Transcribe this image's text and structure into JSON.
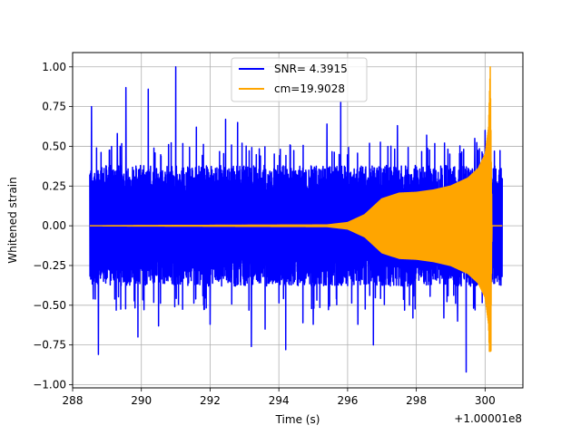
{
  "chart_data": {
    "type": "line",
    "title": "",
    "xlabel": "Time (s)",
    "ylabel": "Whitened strain",
    "x_offset_label": "+1.00001e8",
    "xlim": [
      288.0,
      301.1
    ],
    "ylim": [
      -1.02,
      1.09
    ],
    "x_ticks": [
      288,
      290,
      292,
      294,
      296,
      298,
      300
    ],
    "x_tick_labels": [
      "288",
      "290",
      "292",
      "294",
      "296",
      "298",
      "300"
    ],
    "y_ticks": [
      -1.0,
      -0.75,
      -0.5,
      -0.25,
      0.0,
      0.25,
      0.5,
      0.75,
      1.0
    ],
    "y_tick_labels": [
      "−1.00",
      "−0.75",
      "−0.50",
      "−0.25",
      "0.00",
      "0.25",
      "0.50",
      "0.75",
      "1.00"
    ],
    "grid": true,
    "legend_placement": "upper-center",
    "series": [
      {
        "name": "SNR= 4.3915",
        "color": "#0000ff",
        "kind": "noise",
        "x_range": [
          288.5,
          300.5
        ],
        "typical_amplitude": 0.38,
        "peaks": [
          {
            "x": 288.55,
            "y": 0.75
          },
          {
            "x": 288.6,
            "y": -0.46
          },
          {
            "x": 288.75,
            "y": -0.81
          },
          {
            "x": 289.3,
            "y": 0.58
          },
          {
            "x": 289.55,
            "y": 0.87
          },
          {
            "x": 289.9,
            "y": -0.7
          },
          {
            "x": 290.2,
            "y": 0.86
          },
          {
            "x": 290.5,
            "y": -0.63
          },
          {
            "x": 291.0,
            "y": 1.0
          },
          {
            "x": 291.6,
            "y": 0.62
          },
          {
            "x": 292.0,
            "y": -0.62
          },
          {
            "x": 292.45,
            "y": 0.67
          },
          {
            "x": 292.8,
            "y": 0.65
          },
          {
            "x": 293.2,
            "y": -0.76
          },
          {
            "x": 293.6,
            "y": -0.65
          },
          {
            "x": 294.2,
            "y": -0.78
          },
          {
            "x": 294.7,
            "y": -0.61
          },
          {
            "x": 295.0,
            "y": -0.62
          },
          {
            "x": 295.4,
            "y": 0.64
          },
          {
            "x": 295.8,
            "y": 0.78
          },
          {
            "x": 296.3,
            "y": -0.62
          },
          {
            "x": 296.75,
            "y": -0.75
          },
          {
            "x": 297.45,
            "y": 0.63
          },
          {
            "x": 297.9,
            "y": -0.58
          },
          {
            "x": 298.3,
            "y": 0.57
          },
          {
            "x": 298.8,
            "y": -0.58
          },
          {
            "x": 299.2,
            "y": -0.6
          },
          {
            "x": 299.45,
            "y": -0.92
          },
          {
            "x": 299.7,
            "y": 0.55
          },
          {
            "x": 300.0,
            "y": 0.6
          }
        ]
      },
      {
        "name": "cm=19.9028",
        "color": "#ffa500",
        "kind": "chirp",
        "x_range": [
          288.5,
          300.5
        ],
        "envelope": [
          {
            "x": 288.5,
            "y": 0.0
          },
          {
            "x": 295.4,
            "y": 0.005
          },
          {
            "x": 296.0,
            "y": 0.02
          },
          {
            "x": 296.5,
            "y": 0.07
          },
          {
            "x": 297.0,
            "y": 0.17
          },
          {
            "x": 297.5,
            "y": 0.205
          },
          {
            "x": 298.0,
            "y": 0.21
          },
          {
            "x": 298.5,
            "y": 0.225
          },
          {
            "x": 299.0,
            "y": 0.25
          },
          {
            "x": 299.5,
            "y": 0.3
          },
          {
            "x": 299.8,
            "y": 0.36
          },
          {
            "x": 300.0,
            "y": 0.45
          },
          {
            "x": 300.1,
            "y": 0.62
          },
          {
            "x": 300.15,
            "y": 1.0
          },
          {
            "x": 300.2,
            "y": 0.0
          },
          {
            "x": 300.5,
            "y": 0.0
          }
        ],
        "min_value": -0.79,
        "max_value": 1.0
      }
    ]
  }
}
